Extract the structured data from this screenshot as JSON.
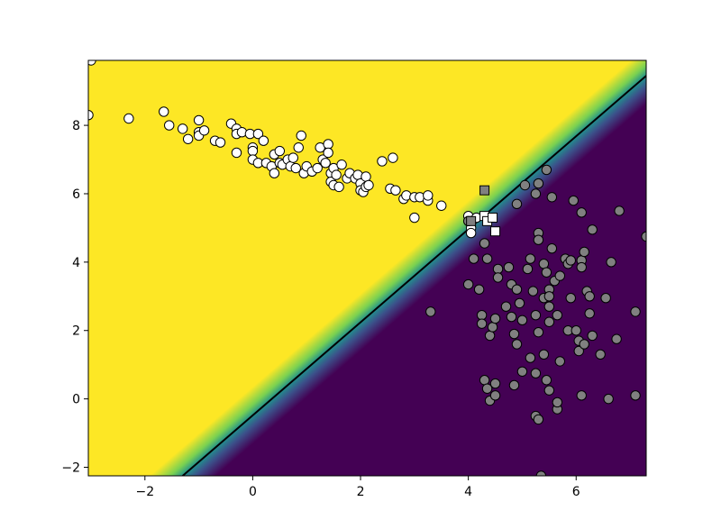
{
  "chart_data": {
    "type": "scatter",
    "title": "",
    "xlabel": "",
    "ylabel": "",
    "xlim": [
      -3.05,
      7.3
    ],
    "ylim": [
      -2.25,
      9.9
    ],
    "x_ticks": [
      -2,
      0,
      2,
      4,
      6
    ],
    "y_ticks": [
      -2,
      0,
      2,
      4,
      6,
      8
    ],
    "x_tick_labels": [
      "−2",
      "0",
      "2",
      "4",
      "6"
    ],
    "y_tick_labels": [
      "−2",
      "0",
      "2",
      "4",
      "6",
      "8"
    ],
    "grid": false,
    "legend": "none",
    "background": {
      "kind": "decision-function-gradient",
      "colormap": "viridis",
      "high_color": "#fde725",
      "mid_color": "#21918c",
      "low_color": "#440154",
      "high_side": "upper-left"
    },
    "decision_boundary": {
      "color": "#000000",
      "points": [
        [
          -1.3,
          -2.25
        ],
        [
          7.3,
          9.45
        ]
      ]
    },
    "series": [
      {
        "class": 0,
        "marker": "circle",
        "fill": "#ffffff",
        "edge": "#000000",
        "points": [
          [
            -3.0,
            9.9
          ],
          [
            -3.05,
            8.3
          ],
          [
            -2.3,
            8.2
          ],
          [
            -1.65,
            8.4
          ],
          [
            -1.55,
            8.0
          ],
          [
            -1.3,
            7.9
          ],
          [
            -1.2,
            7.6
          ],
          [
            -1.0,
            8.15
          ],
          [
            -1.0,
            7.8
          ],
          [
            -1.0,
            7.7
          ],
          [
            -0.9,
            7.85
          ],
          [
            -0.7,
            7.55
          ],
          [
            -0.6,
            7.5
          ],
          [
            -0.4,
            8.05
          ],
          [
            -0.3,
            7.9
          ],
          [
            -0.3,
            7.75
          ],
          [
            -0.3,
            7.2
          ],
          [
            -0.2,
            7.8
          ],
          [
            -0.05,
            7.75
          ],
          [
            0.0,
            7.35
          ],
          [
            0.0,
            7.25
          ],
          [
            0.0,
            7.0
          ],
          [
            0.1,
            7.75
          ],
          [
            0.1,
            6.9
          ],
          [
            0.2,
            7.55
          ],
          [
            0.25,
            6.9
          ],
          [
            0.35,
            6.8
          ],
          [
            0.4,
            7.15
          ],
          [
            0.4,
            6.6
          ],
          [
            0.5,
            7.25
          ],
          [
            0.5,
            6.9
          ],
          [
            0.55,
            6.85
          ],
          [
            0.65,
            7.0
          ],
          [
            0.7,
            6.8
          ],
          [
            0.75,
            7.05
          ],
          [
            0.8,
            6.75
          ],
          [
            0.85,
            7.35
          ],
          [
            0.9,
            7.7
          ],
          [
            0.95,
            6.6
          ],
          [
            1.0,
            6.8
          ],
          [
            1.1,
            6.65
          ],
          [
            1.2,
            6.75
          ],
          [
            1.25,
            7.35
          ],
          [
            1.3,
            7.0
          ],
          [
            1.35,
            6.9
          ],
          [
            1.4,
            7.45
          ],
          [
            1.4,
            7.2
          ],
          [
            1.45,
            6.6
          ],
          [
            1.45,
            6.35
          ],
          [
            1.5,
            6.25
          ],
          [
            1.5,
            6.75
          ],
          [
            1.55,
            6.55
          ],
          [
            1.6,
            6.2
          ],
          [
            1.65,
            6.85
          ],
          [
            1.75,
            6.45
          ],
          [
            1.8,
            6.6
          ],
          [
            1.9,
            6.45
          ],
          [
            1.95,
            6.55
          ],
          [
            2.0,
            6.3
          ],
          [
            2.0,
            6.1
          ],
          [
            2.05,
            6.05
          ],
          [
            2.1,
            6.2
          ],
          [
            2.1,
            6.5
          ],
          [
            2.15,
            6.25
          ],
          [
            2.4,
            6.95
          ],
          [
            2.55,
            6.15
          ],
          [
            2.6,
            7.05
          ],
          [
            2.65,
            6.1
          ],
          [
            2.8,
            5.85
          ],
          [
            2.85,
            5.95
          ],
          [
            3.0,
            5.9
          ],
          [
            3.0,
            5.3
          ],
          [
            3.1,
            5.9
          ],
          [
            3.25,
            5.8
          ],
          [
            3.25,
            5.95
          ],
          [
            3.5,
            5.65
          ],
          [
            4.0,
            5.35
          ],
          [
            4.05,
            5.2
          ],
          [
            4.05,
            5.0
          ],
          [
            4.05,
            4.85
          ],
          [
            4.15,
            5.3
          ]
        ]
      },
      {
        "class": 1,
        "marker": "circle",
        "fill": "#808080",
        "edge": "#000000",
        "points": [
          [
            3.3,
            2.55
          ],
          [
            4.0,
            5.2
          ],
          [
            4.0,
            3.35
          ],
          [
            4.1,
            4.1
          ],
          [
            4.2,
            3.2
          ],
          [
            4.25,
            2.45
          ],
          [
            4.25,
            2.2
          ],
          [
            4.3,
            4.55
          ],
          [
            4.3,
            0.55
          ],
          [
            4.35,
            0.3
          ],
          [
            4.35,
            4.1
          ],
          [
            4.4,
            1.85
          ],
          [
            4.4,
            -0.05
          ],
          [
            4.45,
            2.1
          ],
          [
            4.5,
            2.35
          ],
          [
            4.5,
            0.45
          ],
          [
            4.5,
            0.1
          ],
          [
            4.55,
            3.8
          ],
          [
            4.55,
            3.55
          ],
          [
            4.7,
            2.7
          ],
          [
            4.75,
            3.85
          ],
          [
            4.8,
            3.35
          ],
          [
            4.8,
            2.4
          ],
          [
            4.85,
            0.4
          ],
          [
            4.85,
            1.9
          ],
          [
            4.9,
            3.2
          ],
          [
            4.9,
            5.7
          ],
          [
            4.9,
            1.6
          ],
          [
            4.95,
            2.8
          ],
          [
            5.0,
            0.8
          ],
          [
            5.0,
            2.3
          ],
          [
            5.05,
            6.25
          ],
          [
            5.1,
            3.8
          ],
          [
            5.15,
            4.1
          ],
          [
            5.15,
            1.2
          ],
          [
            5.2,
            3.15
          ],
          [
            5.25,
            2.45
          ],
          [
            5.25,
            6.0
          ],
          [
            5.25,
            0.75
          ],
          [
            5.25,
            -0.5
          ],
          [
            5.3,
            6.3
          ],
          [
            5.3,
            4.85
          ],
          [
            5.3,
            4.65
          ],
          [
            5.3,
            -0.6
          ],
          [
            5.3,
            1.95
          ],
          [
            5.35,
            -2.25
          ],
          [
            5.4,
            3.95
          ],
          [
            5.4,
            2.95
          ],
          [
            5.4,
            1.3
          ],
          [
            5.45,
            6.7
          ],
          [
            5.45,
            0.55
          ],
          [
            5.45,
            3.7
          ],
          [
            5.5,
            2.7
          ],
          [
            5.5,
            3.2
          ],
          [
            5.5,
            3.0
          ],
          [
            5.5,
            2.25
          ],
          [
            5.5,
            0.25
          ],
          [
            5.55,
            5.9
          ],
          [
            5.55,
            4.4
          ],
          [
            5.6,
            3.45
          ],
          [
            5.65,
            2.45
          ],
          [
            5.65,
            -0.3
          ],
          [
            5.65,
            -0.1
          ],
          [
            5.7,
            3.6
          ],
          [
            5.7,
            1.1
          ],
          [
            5.8,
            4.1
          ],
          [
            5.85,
            3.95
          ],
          [
            5.85,
            2.0
          ],
          [
            5.9,
            4.05
          ],
          [
            5.9,
            2.95
          ],
          [
            5.95,
            5.8
          ],
          [
            6.0,
            2.0
          ],
          [
            6.05,
            1.4
          ],
          [
            6.05,
            1.7
          ],
          [
            6.1,
            4.05
          ],
          [
            6.1,
            3.85
          ],
          [
            6.1,
            5.45
          ],
          [
            6.1,
            0.1
          ],
          [
            6.15,
            4.3
          ],
          [
            6.15,
            1.6
          ],
          [
            6.2,
            3.15
          ],
          [
            6.25,
            3.0
          ],
          [
            6.25,
            2.5
          ],
          [
            6.3,
            1.85
          ],
          [
            6.3,
            4.95
          ],
          [
            6.45,
            1.3
          ],
          [
            6.55,
            2.95
          ],
          [
            6.6,
            0.0
          ],
          [
            6.65,
            4.0
          ],
          [
            6.75,
            1.75
          ],
          [
            6.8,
            5.5
          ],
          [
            7.1,
            0.1
          ],
          [
            7.1,
            2.55
          ],
          [
            7.3,
            4.75
          ]
        ]
      },
      {
        "class": "highlighted",
        "marker": "square",
        "fill": "#ffffff",
        "edge": "#000000",
        "points": [
          [
            4.3,
            5.35
          ],
          [
            4.35,
            5.2
          ],
          [
            4.45,
            5.3
          ],
          [
            4.5,
            4.9
          ]
        ]
      },
      {
        "class": "highlighted",
        "marker": "square",
        "fill": "#808080",
        "edge": "#000000",
        "points": [
          [
            4.05,
            5.2
          ],
          [
            4.3,
            6.1
          ]
        ]
      }
    ]
  }
}
